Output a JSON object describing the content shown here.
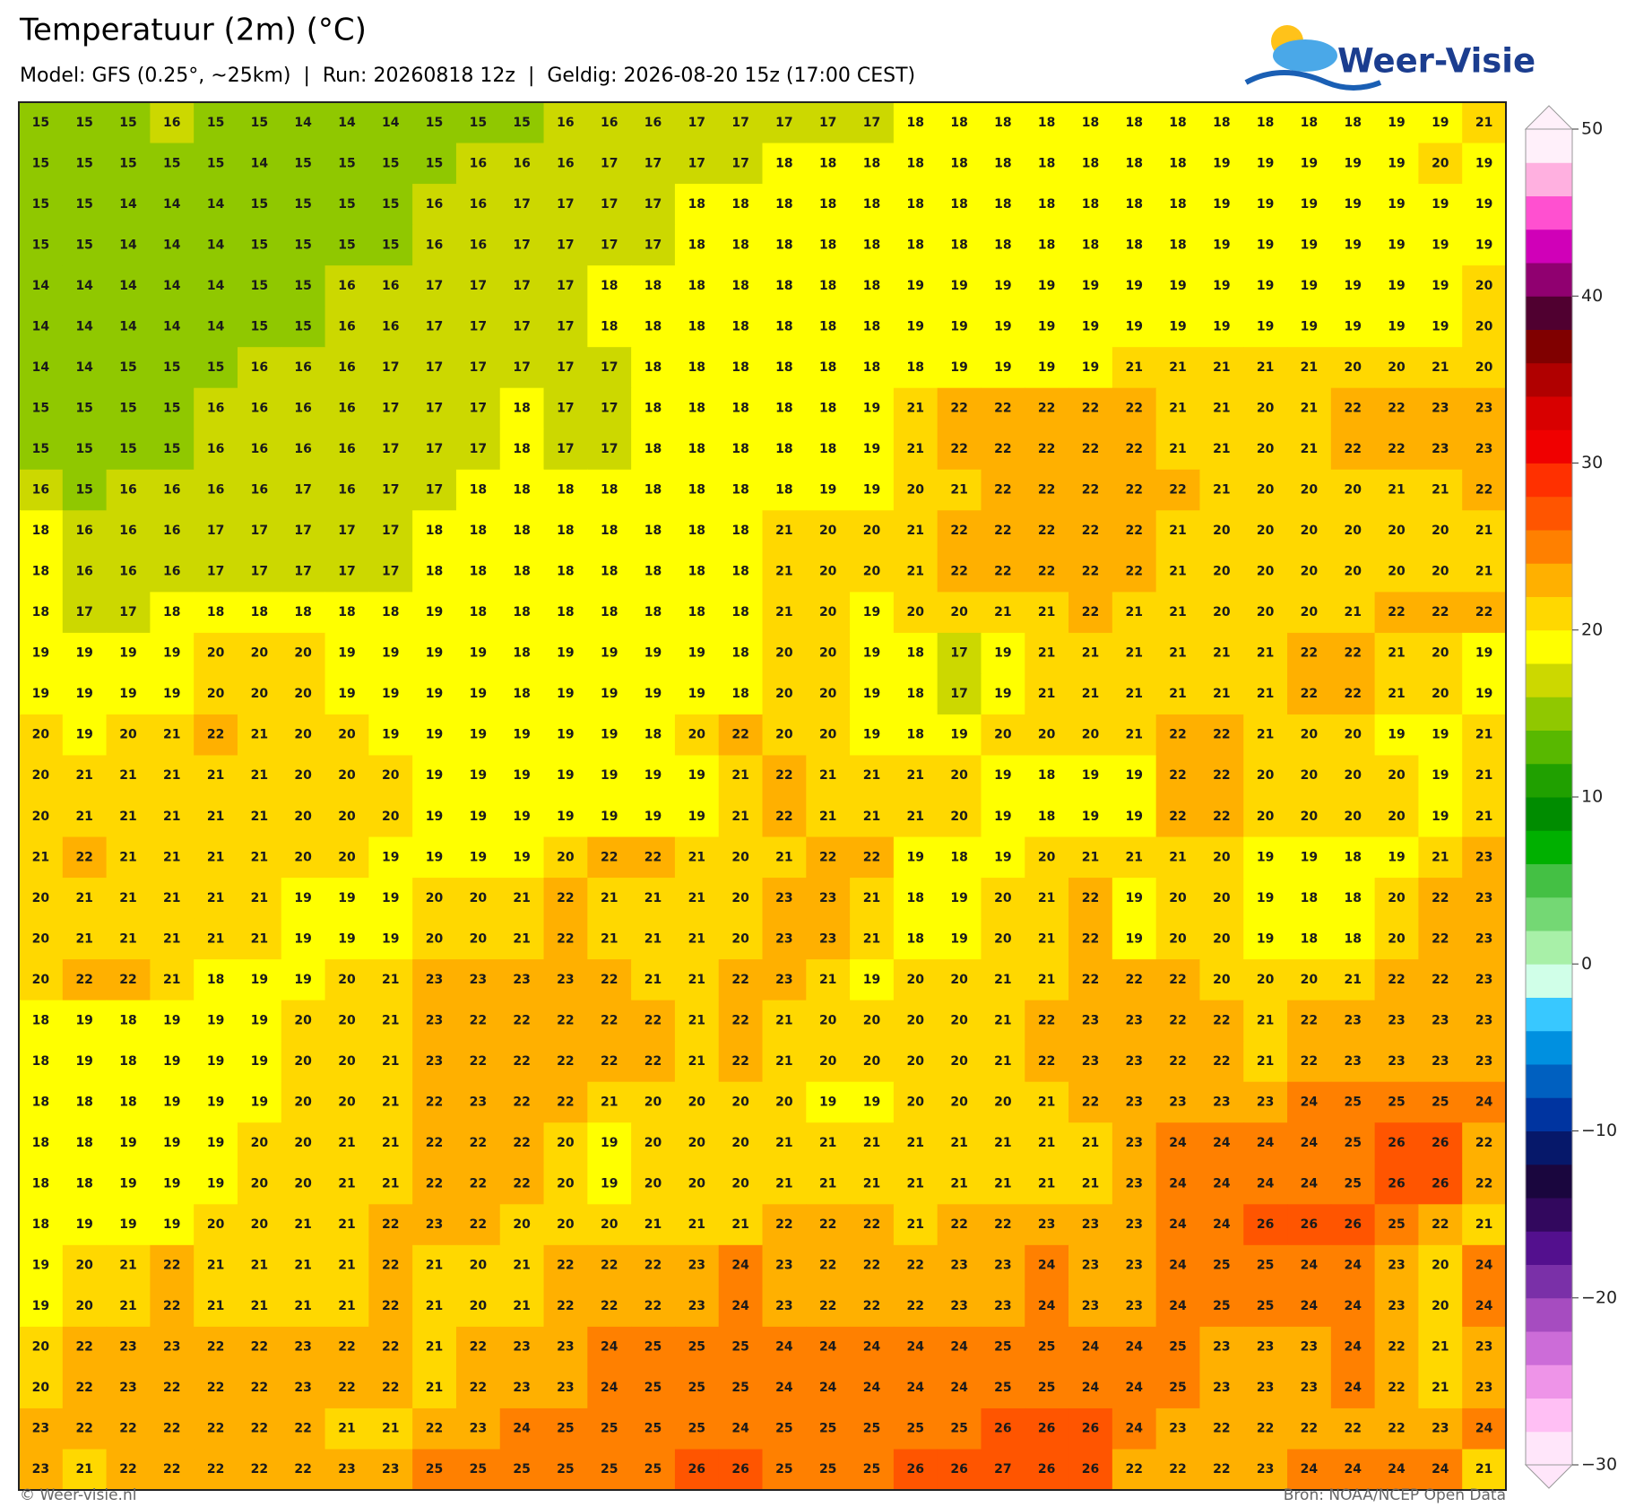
{
  "header": {
    "title": "Temperatuur (2m) (°C)",
    "subtitle": "Model: GFS (0.25°, ~25km)  |  Run: 20260818 12z  |  Geldig: 2026-08-20 15z (17:00 CEST)",
    "logo": "Weer-Visie"
  },
  "map": {
    "values": [
      [
        15,
        15,
        15,
        16,
        15,
        15,
        14,
        14,
        14,
        15,
        15,
        15,
        16,
        16,
        16,
        17,
        17,
        17,
        17,
        17,
        18,
        18,
        18,
        18,
        18,
        18,
        18,
        18,
        18,
        18,
        18,
        19,
        19,
        21
      ],
      [
        15,
        15,
        15,
        15,
        15,
        14,
        15,
        15,
        15,
        15,
        16,
        16,
        16,
        17,
        17,
        17,
        17,
        18,
        18,
        18,
        18,
        18,
        18,
        18,
        18,
        18,
        18,
        19,
        19,
        19,
        19,
        19,
        20,
        19
      ],
      [
        15,
        15,
        14,
        14,
        14,
        15,
        15,
        15,
        15,
        16,
        16,
        17,
        17,
        17,
        17,
        18,
        18,
        18,
        18,
        18,
        18,
        18,
        18,
        18,
        18,
        18,
        18,
        19,
        19,
        19,
        19,
        19,
        19,
        19
      ],
      [
        15,
        15,
        14,
        14,
        14,
        15,
        15,
        15,
        15,
        16,
        16,
        17,
        17,
        17,
        17,
        18,
        18,
        18,
        18,
        18,
        18,
        18,
        18,
        18,
        18,
        18,
        18,
        19,
        19,
        19,
        19,
        19,
        19,
        19
      ],
      [
        14,
        14,
        14,
        14,
        14,
        15,
        15,
        16,
        16,
        17,
        17,
        17,
        17,
        18,
        18,
        18,
        18,
        18,
        18,
        18,
        19,
        19,
        19,
        19,
        19,
        19,
        19,
        19,
        19,
        19,
        19,
        19,
        19,
        20
      ],
      [
        14,
        14,
        14,
        14,
        14,
        15,
        15,
        16,
        16,
        17,
        17,
        17,
        17,
        18,
        18,
        18,
        18,
        18,
        18,
        18,
        19,
        19,
        19,
        19,
        19,
        19,
        19,
        19,
        19,
        19,
        19,
        19,
        19,
        20
      ],
      [
        14,
        14,
        15,
        15,
        15,
        16,
        16,
        16,
        17,
        17,
        17,
        17,
        17,
        17,
        18,
        18,
        18,
        18,
        18,
        18,
        18,
        19,
        19,
        19,
        19,
        21,
        21,
        21,
        21,
        21,
        20,
        20,
        21,
        20
      ],
      [
        15,
        15,
        15,
        15,
        16,
        16,
        16,
        16,
        17,
        17,
        17,
        18,
        17,
        17,
        18,
        18,
        18,
        18,
        18,
        19,
        21,
        22,
        22,
        22,
        22,
        22,
        21,
        21,
        20,
        21,
        22,
        22,
        23,
        23
      ],
      [
        15,
        15,
        15,
        15,
        16,
        16,
        16,
        16,
        17,
        17,
        17,
        18,
        17,
        17,
        18,
        18,
        18,
        18,
        18,
        19,
        21,
        22,
        22,
        22,
        22,
        22,
        21,
        21,
        20,
        21,
        22,
        22,
        23,
        23
      ],
      [
        16,
        15,
        16,
        16,
        16,
        16,
        17,
        16,
        17,
        17,
        18,
        18,
        18,
        18,
        18,
        18,
        18,
        18,
        19,
        19,
        20,
        21,
        22,
        22,
        22,
        22,
        22,
        21,
        20,
        20,
        20,
        21,
        21,
        22
      ],
      [
        18,
        16,
        16,
        16,
        17,
        17,
        17,
        17,
        17,
        18,
        18,
        18,
        18,
        18,
        18,
        18,
        18,
        21,
        20,
        20,
        21,
        22,
        22,
        22,
        22,
        22,
        21,
        20,
        20,
        20,
        20,
        20,
        20,
        21
      ],
      [
        18,
        16,
        16,
        16,
        17,
        17,
        17,
        17,
        17,
        18,
        18,
        18,
        18,
        18,
        18,
        18,
        18,
        21,
        20,
        20,
        21,
        22,
        22,
        22,
        22,
        22,
        21,
        20,
        20,
        20,
        20,
        20,
        20,
        21
      ],
      [
        18,
        17,
        17,
        18,
        18,
        18,
        18,
        18,
        18,
        19,
        18,
        18,
        18,
        18,
        18,
        18,
        18,
        21,
        20,
        19,
        20,
        20,
        21,
        21,
        22,
        21,
        21,
        20,
        20,
        20,
        21,
        22,
        22,
        22
      ],
      [
        19,
        19,
        19,
        19,
        20,
        20,
        20,
        19,
        19,
        19,
        19,
        18,
        19,
        19,
        19,
        19,
        18,
        20,
        20,
        19,
        18,
        17,
        19,
        21,
        21,
        21,
        21,
        21,
        21,
        22,
        22,
        21,
        20,
        19
      ],
      [
        19,
        19,
        19,
        19,
        20,
        20,
        20,
        19,
        19,
        19,
        19,
        18,
        19,
        19,
        19,
        19,
        18,
        20,
        20,
        19,
        18,
        17,
        19,
        21,
        21,
        21,
        21,
        21,
        21,
        22,
        22,
        21,
        20,
        19
      ],
      [
        20,
        19,
        20,
        21,
        22,
        21,
        20,
        20,
        19,
        19,
        19,
        19,
        19,
        19,
        18,
        20,
        22,
        20,
        20,
        19,
        18,
        19,
        20,
        20,
        20,
        21,
        22,
        22,
        21,
        20,
        20,
        19,
        19,
        21
      ],
      [
        20,
        21,
        21,
        21,
        21,
        21,
        20,
        20,
        20,
        19,
        19,
        19,
        19,
        19,
        19,
        19,
        21,
        22,
        21,
        21,
        21,
        20,
        19,
        18,
        19,
        19,
        22,
        22,
        20,
        20,
        20,
        20,
        19,
        21
      ],
      [
        20,
        21,
        21,
        21,
        21,
        21,
        20,
        20,
        20,
        19,
        19,
        19,
        19,
        19,
        19,
        19,
        21,
        22,
        21,
        21,
        21,
        20,
        19,
        18,
        19,
        19,
        22,
        22,
        20,
        20,
        20,
        20,
        19,
        21
      ],
      [
        21,
        22,
        21,
        21,
        21,
        21,
        20,
        20,
        19,
        19,
        19,
        19,
        20,
        22,
        22,
        21,
        20,
        21,
        22,
        22,
        19,
        18,
        19,
        20,
        21,
        21,
        21,
        20,
        19,
        19,
        18,
        19,
        21,
        23
      ],
      [
        20,
        21,
        21,
        21,
        21,
        21,
        19,
        19,
        19,
        20,
        20,
        21,
        22,
        21,
        21,
        21,
        20,
        23,
        23,
        21,
        18,
        19,
        20,
        21,
        22,
        19,
        20,
        20,
        19,
        18,
        18,
        20,
        22,
        23
      ],
      [
        20,
        21,
        21,
        21,
        21,
        21,
        19,
        19,
        19,
        20,
        20,
        21,
        22,
        21,
        21,
        21,
        20,
        23,
        23,
        21,
        18,
        19,
        20,
        21,
        22,
        19,
        20,
        20,
        19,
        18,
        18,
        20,
        22,
        23
      ],
      [
        20,
        22,
        22,
        21,
        18,
        19,
        19,
        20,
        21,
        23,
        23,
        23,
        23,
        22,
        21,
        21,
        22,
        23,
        21,
        19,
        20,
        20,
        21,
        21,
        22,
        22,
        22,
        20,
        20,
        20,
        21,
        22,
        22,
        23
      ],
      [
        18,
        19,
        18,
        19,
        19,
        19,
        20,
        20,
        21,
        23,
        22,
        22,
        22,
        22,
        22,
        21,
        22,
        21,
        20,
        20,
        20,
        20,
        21,
        22,
        23,
        23,
        22,
        22,
        21,
        22,
        23,
        23,
        23,
        23
      ],
      [
        18,
        19,
        18,
        19,
        19,
        19,
        20,
        20,
        21,
        23,
        22,
        22,
        22,
        22,
        22,
        21,
        22,
        21,
        20,
        20,
        20,
        20,
        21,
        22,
        23,
        23,
        22,
        22,
        21,
        22,
        23,
        23,
        23,
        23
      ],
      [
        18,
        18,
        18,
        19,
        19,
        19,
        20,
        20,
        21,
        22,
        23,
        22,
        22,
        21,
        20,
        20,
        20,
        20,
        19,
        19,
        20,
        20,
        20,
        21,
        22,
        23,
        23,
        23,
        23,
        24,
        25,
        25,
        25,
        24
      ],
      [
        18,
        18,
        19,
        19,
        19,
        20,
        20,
        21,
        21,
        22,
        22,
        22,
        20,
        19,
        20,
        20,
        20,
        21,
        21,
        21,
        21,
        21,
        21,
        21,
        21,
        23,
        24,
        24,
        24,
        24,
        25,
        26,
        26,
        22
      ],
      [
        18,
        18,
        19,
        19,
        19,
        20,
        20,
        21,
        21,
        22,
        22,
        22,
        20,
        19,
        20,
        20,
        20,
        21,
        21,
        21,
        21,
        21,
        21,
        21,
        21,
        23,
        24,
        24,
        24,
        24,
        25,
        26,
        26,
        22
      ],
      [
        18,
        19,
        19,
        19,
        20,
        20,
        21,
        21,
        22,
        23,
        22,
        20,
        20,
        20,
        21,
        21,
        21,
        22,
        22,
        22,
        21,
        22,
        22,
        23,
        23,
        23,
        24,
        24,
        26,
        26,
        26,
        25,
        22,
        21
      ],
      [
        19,
        20,
        21,
        22,
        21,
        21,
        21,
        21,
        22,
        21,
        20,
        21,
        22,
        22,
        22,
        23,
        24,
        23,
        22,
        22,
        22,
        23,
        23,
        24,
        23,
        23,
        24,
        25,
        25,
        24,
        24,
        23,
        20,
        24
      ],
      [
        19,
        20,
        21,
        22,
        21,
        21,
        21,
        21,
        22,
        21,
        20,
        21,
        22,
        22,
        22,
        23,
        24,
        23,
        22,
        22,
        22,
        23,
        23,
        24,
        23,
        23,
        24,
        25,
        25,
        24,
        24,
        23,
        20,
        24
      ],
      [
        20,
        22,
        23,
        23,
        22,
        22,
        23,
        22,
        22,
        21,
        22,
        23,
        23,
        24,
        25,
        25,
        25,
        24,
        24,
        24,
        24,
        24,
        25,
        25,
        24,
        24,
        25,
        23,
        23,
        23,
        24,
        22,
        21,
        23
      ],
      [
        20,
        22,
        23,
        22,
        22,
        22,
        23,
        22,
        22,
        21,
        22,
        23,
        23,
        24,
        25,
        25,
        25,
        24,
        24,
        24,
        24,
        24,
        25,
        25,
        24,
        24,
        25,
        23,
        23,
        23,
        24,
        22,
        21,
        23
      ],
      [
        23,
        22,
        22,
        22,
        22,
        22,
        22,
        21,
        21,
        22,
        23,
        24,
        25,
        25,
        25,
        25,
        24,
        25,
        25,
        25,
        25,
        25,
        26,
        26,
        26,
        24,
        23,
        22,
        22,
        22,
        22,
        22,
        23,
        24
      ],
      [
        23,
        21,
        22,
        22,
        22,
        22,
        22,
        23,
        23,
        25,
        25,
        25,
        25,
        25,
        25,
        26,
        26,
        25,
        25,
        25,
        26,
        26,
        27,
        26,
        26,
        22,
        22,
        22,
        23,
        24,
        24,
        24,
        24,
        21
      ]
    ]
  },
  "colorbar": {
    "lim": [
      -30,
      50
    ],
    "ticks": [
      50,
      40,
      30,
      20,
      10,
      0,
      {
        "value": -10,
        "label": "−10"
      },
      {
        "value": -20,
        "label": "−20"
      },
      {
        "value": -30,
        "label": "−30"
      }
    ],
    "colors": [
      "#ffe6fa",
      "#ffbff4",
      "#ee94e8",
      "#cc6cd8",
      "#a64cc0",
      "#7a30a8",
      "#53108e",
      "#32085e",
      "#1a063e",
      "#06186a",
      "#0034a0",
      "#0060c0",
      "#0090e0",
      "#38c8ff",
      "#d0ffe8",
      "#a8f0a8",
      "#74d874",
      "#44c044",
      "#00b000",
      "#008c00",
      "#20a000",
      "#58b800",
      "#90c800",
      "#ccd800",
      "#ffff00",
      "#ffd800",
      "#ffb000",
      "#ff8000",
      "#ff5500",
      "#ff3000",
      "#f00000",
      "#d80000",
      "#b00000",
      "#800000",
      "#500030",
      "#900070",
      "#d000b8",
      "#ff50d0",
      "#ffb0e0",
      "#fff0fa"
    ]
  },
  "footer": {
    "left": "© Weer-visie.nl",
    "right": "Bron: NOAA/NCEP Open Data"
  }
}
